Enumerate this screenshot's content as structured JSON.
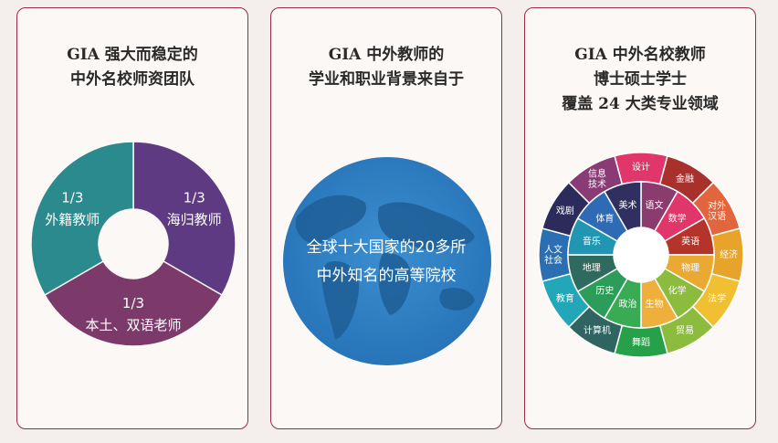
{
  "card1": {
    "title_lines": [
      "GIA 强大而稳定的",
      "中外名校师资团队"
    ],
    "segments": [
      {
        "fraction": "1/3",
        "label": "海归教师",
        "color": "#5e3a82"
      },
      {
        "fraction": "1/3",
        "label": "本土、双语老师",
        "color": "#7b3a6a"
      },
      {
        "fraction": "1/3",
        "label": "外籍教师",
        "color": "#2a8a8e"
      }
    ]
  },
  "card2": {
    "title_lines": [
      "GIA 中外教师的",
      "学业和职业背景来自于"
    ],
    "globe_lines": [
      "全球十大国家的20多所",
      "中外知名的高等院校"
    ],
    "globe_color": "#2f7fc1"
  },
  "card3": {
    "title_lines": [
      "GIA 中外名校教师",
      "博士硕士学士",
      "覆盖 24 大类专业领域"
    ],
    "outer": [
      {
        "label": "设计",
        "color": "#e0366a"
      },
      {
        "label": "金融",
        "color": "#a8312c"
      },
      {
        "label": "对外\n汉语",
        "color": "#e1663d"
      },
      {
        "label": "经济",
        "color": "#e8a32a"
      },
      {
        "label": "法学",
        "color": "#f1bf32"
      },
      {
        "label": "贸易",
        "color": "#8cbc3d"
      },
      {
        "label": "舞蹈",
        "color": "#27a04a"
      },
      {
        "label": "计算机",
        "color": "#2f6460"
      },
      {
        "label": "教育",
        "color": "#22a7b8"
      },
      {
        "label": "人文\n社会",
        "color": "#2a6fb2"
      },
      {
        "label": "戏剧",
        "color": "#2c2c5c"
      },
      {
        "label": "信息\n技术",
        "color": "#8a3a74"
      }
    ],
    "inner": [
      {
        "label": "语文",
        "color": "#8b3c6f"
      },
      {
        "label": "数学",
        "color": "#e0366a"
      },
      {
        "label": "英语",
        "color": "#b53429"
      },
      {
        "label": "物理",
        "color": "#e9a933"
      },
      {
        "label": "化学",
        "color": "#8cbc3d"
      },
      {
        "label": "生物",
        "color": "#eeb03a"
      },
      {
        "label": "政治",
        "color": "#3aab55"
      },
      {
        "label": "历史",
        "color": "#2c9d58"
      },
      {
        "label": "地理",
        "color": "#2f6a5f"
      },
      {
        "label": "音乐",
        "color": "#2196b3"
      },
      {
        "label": "体育",
        "color": "#2f6ab4"
      },
      {
        "label": "美术",
        "color": "#2f2f61"
      }
    ]
  }
}
